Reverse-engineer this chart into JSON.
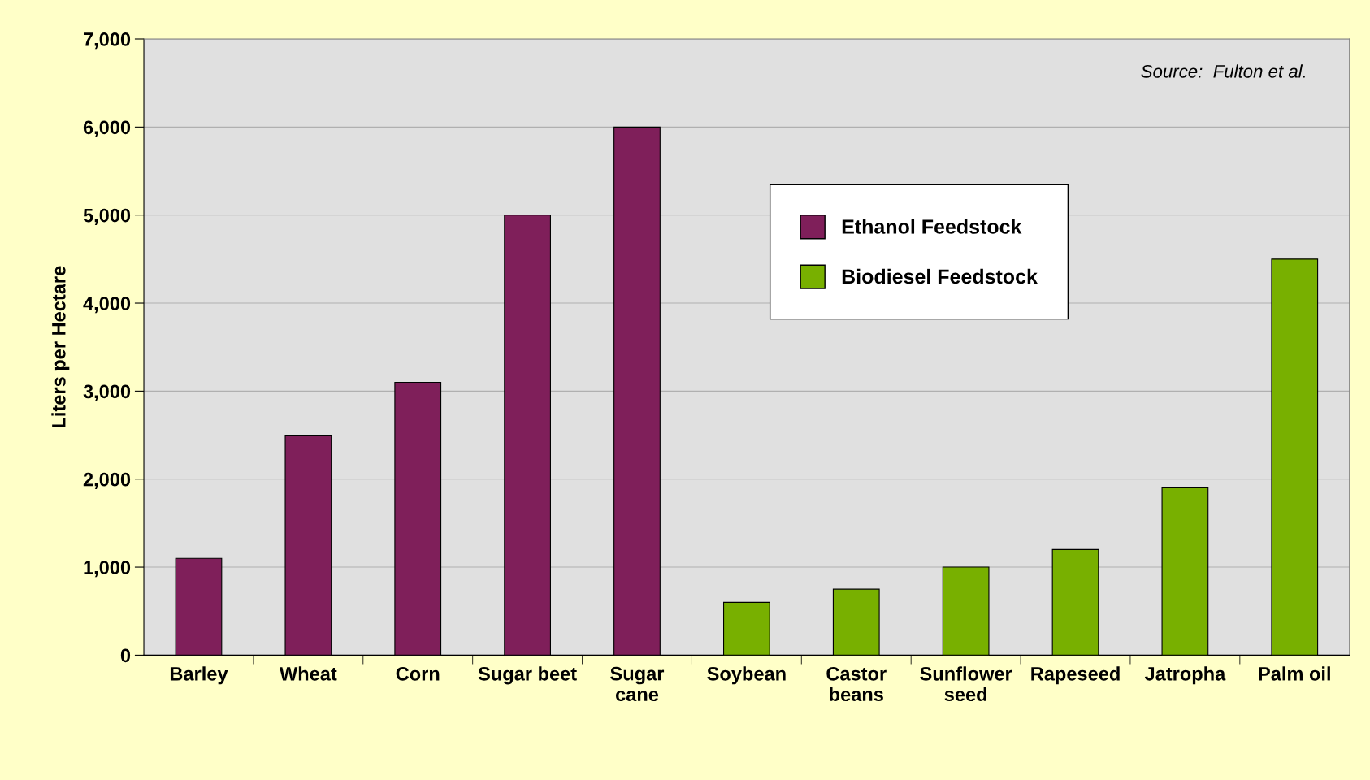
{
  "chart_data": {
    "type": "bar",
    "ylabel": "Liters per Hectare",
    "categories": [
      "Barley",
      "Wheat",
      "Corn",
      "Sugar beet",
      "Sugar\ncane",
      "Soybean",
      "Castor\nbeans",
      "Sunflower\nseed",
      "Rapeseed",
      "Jatropha",
      "Palm oil"
    ],
    "series": [
      {
        "name": "Ethanol Feedstock",
        "color": "#7f1f5a",
        "values": [
          1100,
          2500,
          3100,
          5000,
          6000,
          null,
          null,
          null,
          null,
          null,
          null
        ]
      },
      {
        "name": "Biodiesel Feedstock",
        "color": "#78b000",
        "values": [
          null,
          null,
          null,
          null,
          null,
          600,
          750,
          1000,
          1200,
          1900,
          4500
        ]
      }
    ],
    "ylim": [
      0,
      7000
    ],
    "yticks": [
      0,
      {
        "value": 1000,
        "label": "1,000"
      },
      {
        "value": 2000,
        "label": "2,000"
      },
      {
        "value": 3000,
        "label": "3,000"
      },
      {
        "value": 4000,
        "label": "4,000"
      },
      {
        "value": 5000,
        "label": "5,000"
      },
      {
        "value": 6000,
        "label": "6,000"
      },
      {
        "value": 7000,
        "label": "7,000"
      }
    ],
    "grid": "y",
    "legend": "top right",
    "annotations": [
      "Source:  Fulton et al."
    ]
  }
}
